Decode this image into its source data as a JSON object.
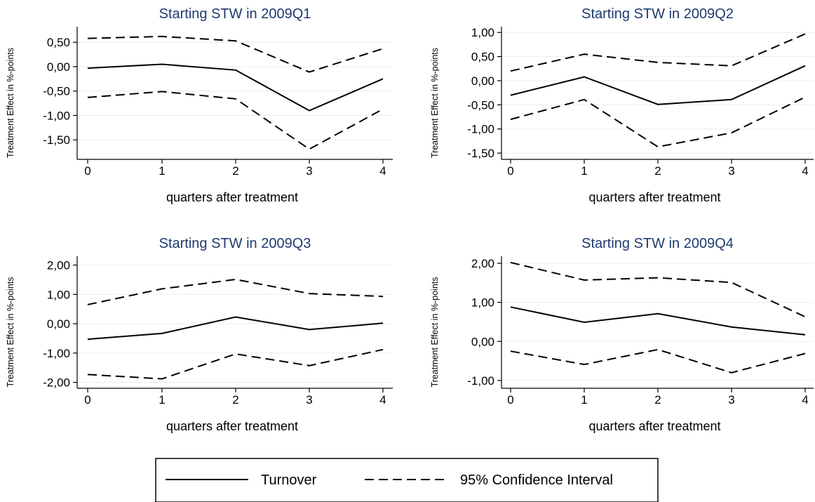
{
  "chart_data": [
    {
      "type": "line",
      "title": "Starting STW in 2009Q1",
      "xlabel": "quarters after treatment",
      "ylabel": "Treatment Effect in %-points",
      "x": [
        0,
        1,
        2,
        3,
        4
      ],
      "xticks": [
        "0",
        "1",
        "2",
        "3",
        "4"
      ],
      "ylim": [
        -1.9,
        0.82
      ],
      "yticks": [
        0.5,
        0.0,
        -0.5,
        -1.0,
        -1.5
      ],
      "ytick_labels": [
        "0,50",
        "0,00",
        "-0,50",
        "-1,00",
        "-1,50"
      ],
      "grid": true,
      "series": [
        {
          "name": "Turnover",
          "style": "solid",
          "values": [
            -0.03,
            0.05,
            -0.07,
            -0.9,
            -0.25
          ]
        },
        {
          "name": "95% Confidence Interval",
          "style": "dashed",
          "values": [
            0.58,
            0.62,
            0.53,
            -0.11,
            0.37
          ]
        },
        {
          "name": "95% Confidence Interval",
          "style": "dashed",
          "values": [
            -0.63,
            -0.51,
            -0.66,
            -1.69,
            -0.87
          ]
        }
      ]
    },
    {
      "type": "line",
      "title": "Starting STW in 2009Q2",
      "xlabel": "quarters after treatment",
      "ylabel": "Treatment Effect in %-points",
      "x": [
        0,
        1,
        2,
        3,
        4
      ],
      "xticks": [
        "0",
        "1",
        "2",
        "3",
        "4"
      ],
      "ylim": [
        -1.63,
        1.12
      ],
      "yticks": [
        1.0,
        0.5,
        0.0,
        -0.5,
        -1.0,
        -1.5
      ],
      "ytick_labels": [
        "1,00",
        "0,50",
        "0,00",
        "-0,50",
        "-1,00",
        "-1,50"
      ],
      "grid": true,
      "series": [
        {
          "name": "Turnover",
          "style": "solid",
          "values": [
            -0.3,
            0.08,
            -0.49,
            -0.39,
            0.31
          ]
        },
        {
          "name": "95% Confidence Interval",
          "style": "dashed",
          "values": [
            0.2,
            0.55,
            0.38,
            0.31,
            0.97
          ]
        },
        {
          "name": "95% Confidence Interval",
          "style": "dashed",
          "values": [
            -0.8,
            -0.39,
            -1.37,
            -1.08,
            -0.34
          ]
        }
      ]
    },
    {
      "type": "line",
      "title": "Starting STW in 2009Q3",
      "xlabel": "quarters after treatment",
      "ylabel": "Treatment Effect in %-points",
      "x": [
        0,
        1,
        2,
        3,
        4
      ],
      "xticks": [
        "0",
        "1",
        "2",
        "3",
        "4"
      ],
      "ylim": [
        -2.2,
        2.3
      ],
      "yticks": [
        2.0,
        1.0,
        0.0,
        -1.0,
        -2.0
      ],
      "ytick_labels": [
        "2,00",
        "1,00",
        "0,00",
        "-1,00",
        "-2,00"
      ],
      "grid": true,
      "series": [
        {
          "name": "Turnover",
          "style": "solid",
          "values": [
            -0.53,
            -0.33,
            0.23,
            -0.2,
            0.02
          ]
        },
        {
          "name": "95% Confidence Interval",
          "style": "dashed",
          "values": [
            0.65,
            1.19,
            1.51,
            1.03,
            0.93
          ]
        },
        {
          "name": "95% Confidence Interval",
          "style": "dashed",
          "values": [
            -1.73,
            -1.88,
            -1.03,
            -1.43,
            -0.88
          ]
        }
      ]
    },
    {
      "type": "line",
      "title": "Starting STW in 2009Q4",
      "xlabel": "quarters after treatment",
      "ylabel": "Treatment Effect in %-points",
      "x": [
        0,
        1,
        2,
        3,
        4
      ],
      "xticks": [
        "0",
        "1",
        "2",
        "3",
        "4"
      ],
      "ylim": [
        -1.2,
        2.18
      ],
      "yticks": [
        2.0,
        1.0,
        0.0,
        -1.0
      ],
      "ytick_labels": [
        "2,00",
        "1,00",
        "0,00",
        "-1,00"
      ],
      "grid": true,
      "series": [
        {
          "name": "Turnover",
          "style": "solid",
          "values": [
            0.88,
            0.49,
            0.71,
            0.37,
            0.17
          ]
        },
        {
          "name": "95% Confidence Interval",
          "style": "dashed",
          "values": [
            2.02,
            1.57,
            1.63,
            1.51,
            0.63
          ]
        },
        {
          "name": "95% Confidence Interval",
          "style": "dashed",
          "values": [
            -0.25,
            -0.59,
            -0.21,
            -0.8,
            -0.31
          ]
        }
      ]
    }
  ],
  "legend": {
    "placement": "bottom-center",
    "items": [
      {
        "label": "Turnover",
        "style": "solid"
      },
      {
        "label": "95% Confidence Interval",
        "style": "dashed"
      }
    ]
  }
}
